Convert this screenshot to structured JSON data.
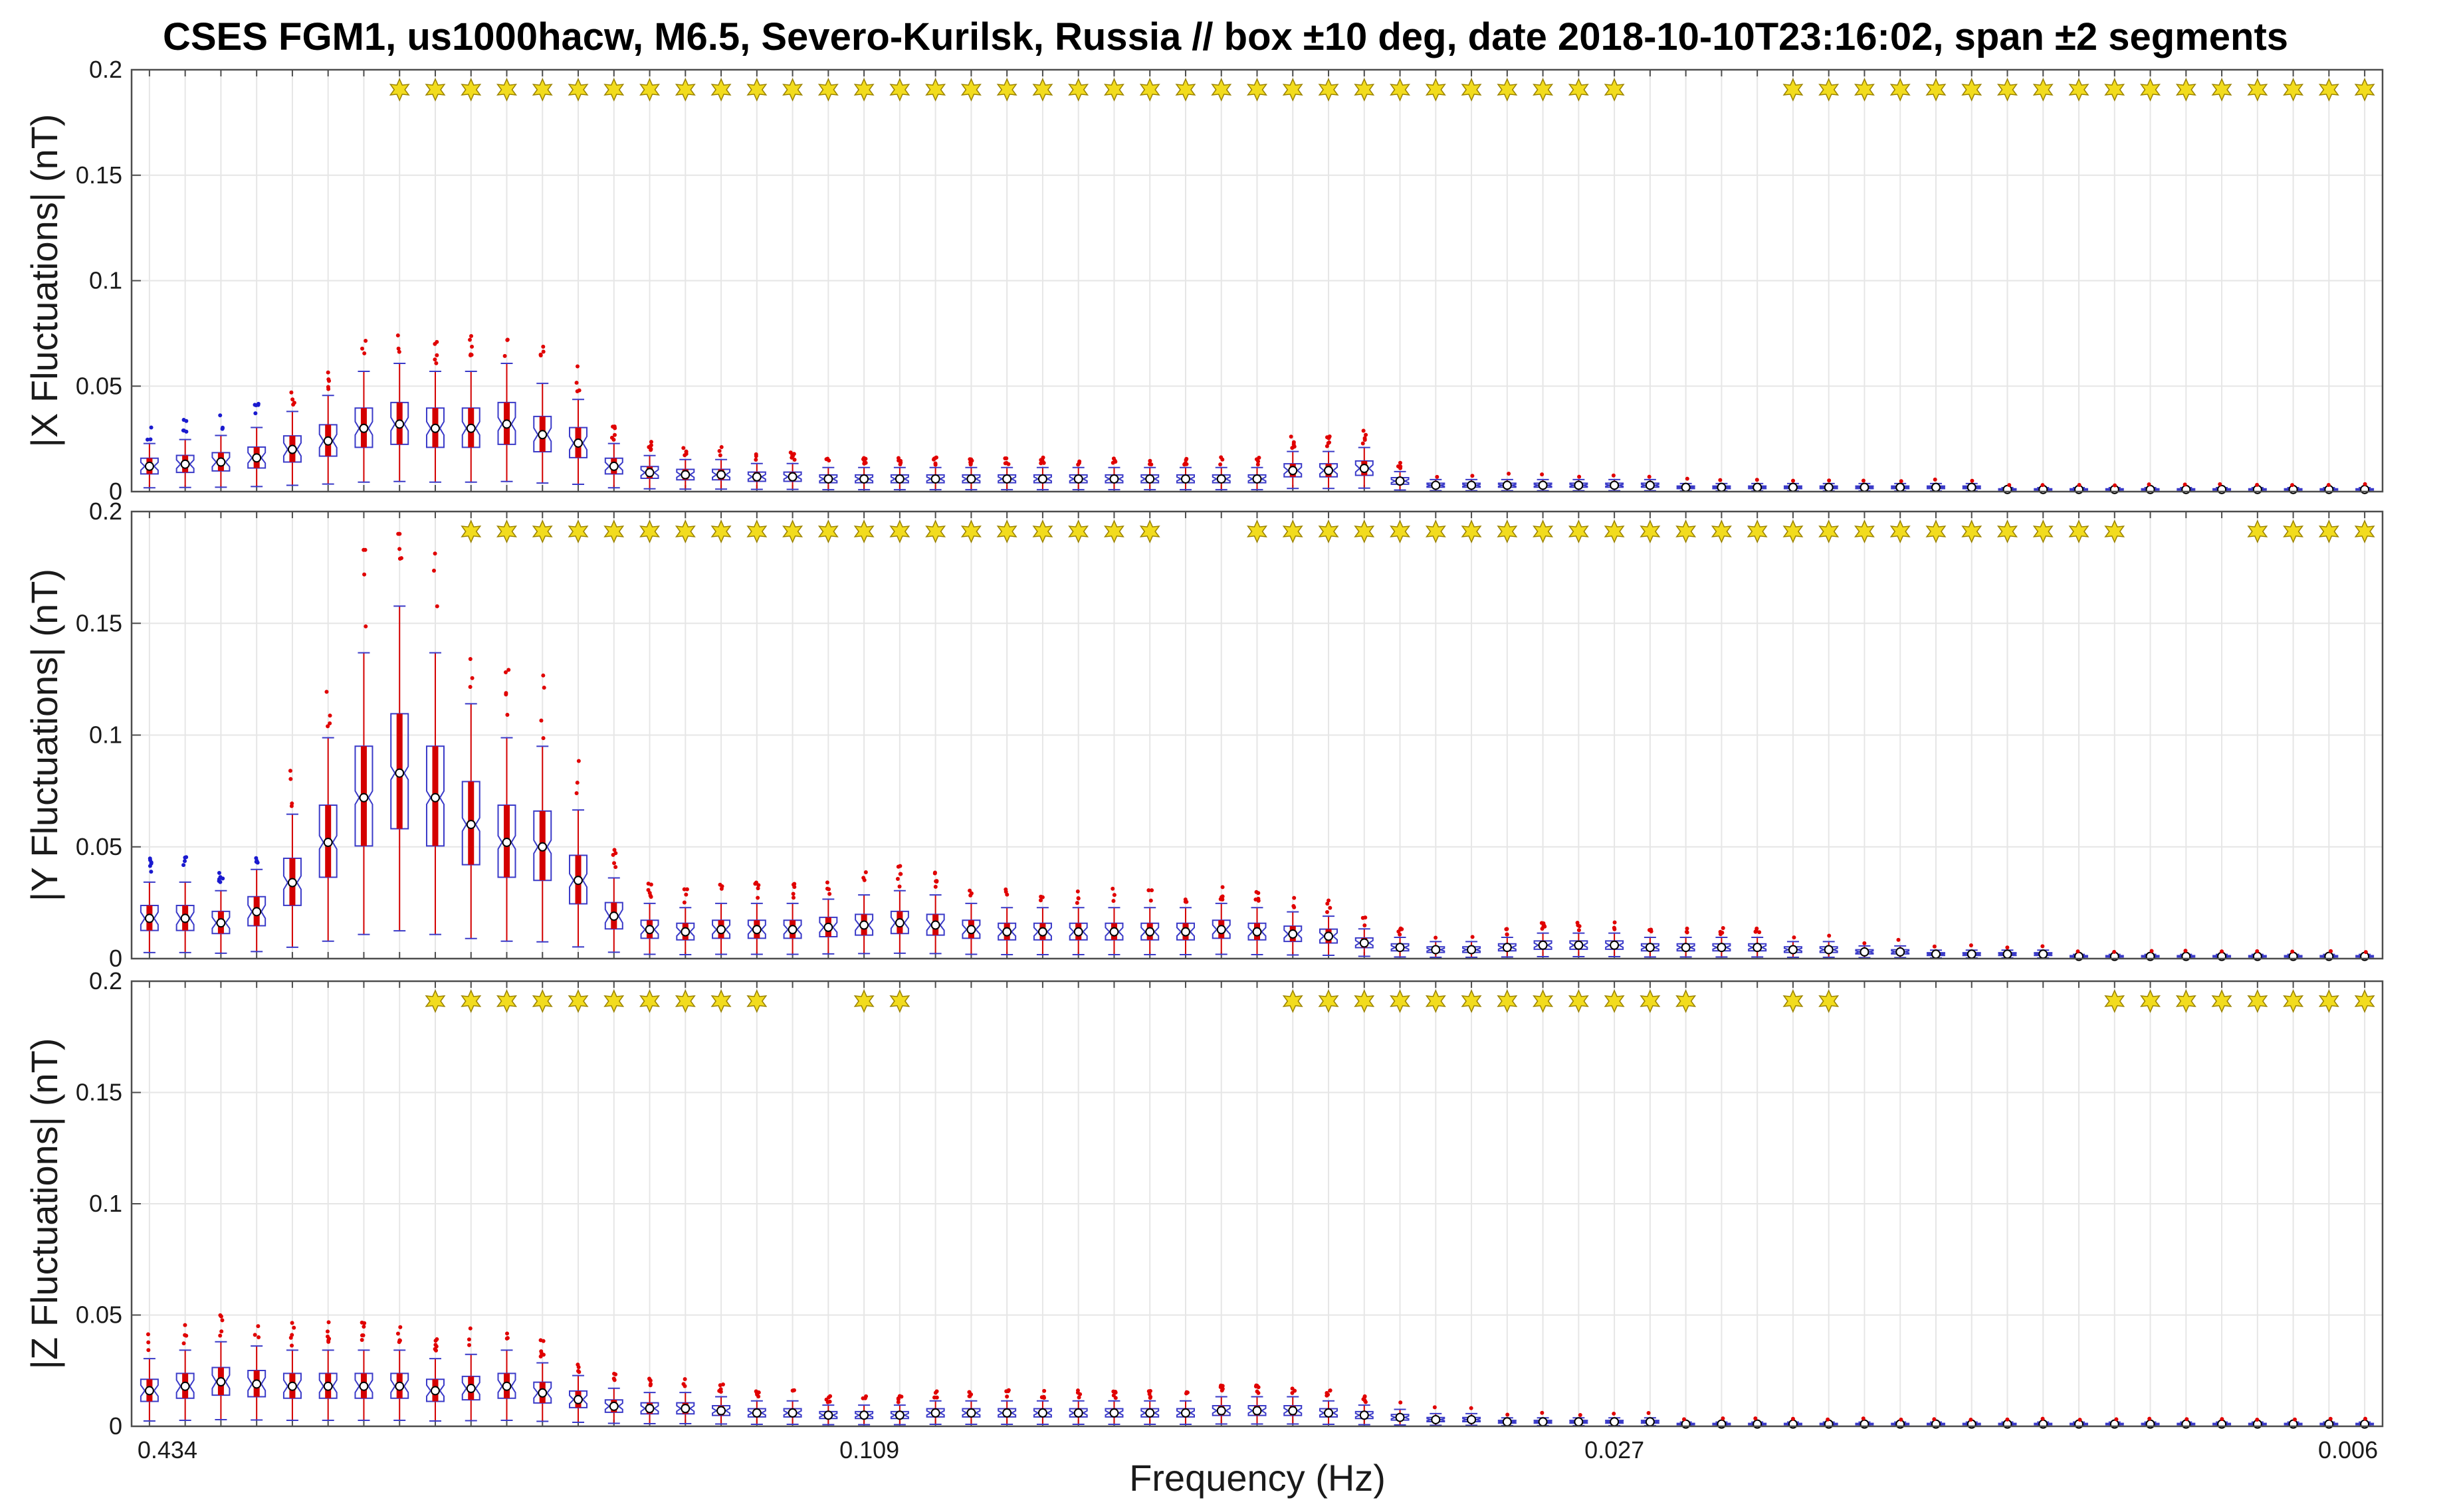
{
  "colors": {
    "box": "#3a3ac8",
    "median": "#d40000",
    "outlier_red": "#e00000",
    "outlier_blue": "#1a1acf",
    "star": "#f2dc1e",
    "grid": "#e6e6e6",
    "axis": "#4d4d4d"
  },
  "chart_data": {
    "type": "boxplot",
    "title": "CSES FGM1, us1000hacw, M6.5, Severo-Kurilsk, Russia // box ±10 deg, date 2018-10-10T23:16:02, span ±2 segments",
    "xlabel": "Frequency (Hz)",
    "xticks": [
      "0.434",
      "0.109",
      "0.027",
      "0.006"
    ],
    "n_bins": 63,
    "legend": "none",
    "grid": true,
    "panels": [
      {
        "ylabel": "|X Fluctuations| (nT)",
        "ylim": [
          0,
          0.2
        ],
        "yticks": [
          "0",
          "0.05",
          "0.1",
          "0.15",
          "0.2"
        ],
        "star_bins": [
          7,
          8,
          9,
          10,
          11,
          12,
          13,
          14,
          15,
          16,
          17,
          18,
          19,
          20,
          21,
          22,
          23,
          24,
          25,
          26,
          27,
          28,
          29,
          30,
          31,
          32,
          33,
          34,
          35,
          36,
          37,
          38,
          39,
          40,
          41,
          46,
          47,
          48,
          49,
          50,
          51,
          52,
          53,
          54,
          55,
          56,
          57,
          58,
          59,
          60,
          61,
          62
        ],
        "medians": [
          0.012,
          0.013,
          0.014,
          0.016,
          0.02,
          0.024,
          0.03,
          0.032,
          0.03,
          0.03,
          0.032,
          0.027,
          0.023,
          0.012,
          0.009,
          0.008,
          0.008,
          0.007,
          0.007,
          0.006,
          0.006,
          0.006,
          0.006,
          0.006,
          0.006,
          0.006,
          0.006,
          0.006,
          0.006,
          0.006,
          0.006,
          0.006,
          0.01,
          0.01,
          0.011,
          0.005,
          0.003,
          0.003,
          0.003,
          0.003,
          0.003,
          0.003,
          0.003,
          0.002,
          0.002,
          0.002,
          0.002,
          0.002,
          0.002,
          0.002,
          0.002,
          0.002,
          0.001,
          0.001,
          0.001,
          0.001,
          0.001,
          0.001,
          0.001,
          0.001,
          0.001,
          0.001,
          0.001
        ]
      },
      {
        "ylabel": "|Y Fluctuations| (nT)",
        "ylim": [
          0,
          0.2
        ],
        "yticks": [
          "0",
          "0.05",
          "0.1",
          "0.15",
          "0.2"
        ],
        "star_bins": [
          9,
          10,
          11,
          12,
          13,
          14,
          15,
          16,
          17,
          18,
          19,
          20,
          21,
          22,
          23,
          24,
          25,
          26,
          27,
          28,
          31,
          32,
          33,
          34,
          35,
          36,
          37,
          38,
          39,
          40,
          41,
          42,
          43,
          44,
          45,
          46,
          47,
          48,
          49,
          50,
          51,
          52,
          53,
          54,
          55,
          59,
          60,
          61,
          62
        ],
        "medians": [
          0.018,
          0.018,
          0.016,
          0.021,
          0.034,
          0.052,
          0.072,
          0.083,
          0.072,
          0.06,
          0.052,
          0.05,
          0.035,
          0.019,
          0.013,
          0.012,
          0.013,
          0.013,
          0.013,
          0.014,
          0.015,
          0.016,
          0.015,
          0.013,
          0.012,
          0.012,
          0.012,
          0.012,
          0.012,
          0.012,
          0.013,
          0.012,
          0.011,
          0.01,
          0.007,
          0.005,
          0.004,
          0.004,
          0.005,
          0.006,
          0.006,
          0.006,
          0.005,
          0.005,
          0.005,
          0.005,
          0.004,
          0.004,
          0.003,
          0.003,
          0.002,
          0.002,
          0.002,
          0.002,
          0.001,
          0.001,
          0.001,
          0.001,
          0.001,
          0.001,
          0.001,
          0.001,
          0.001
        ]
      },
      {
        "ylabel": "|Z Fluctuations| (nT)",
        "ylim": [
          0,
          0.2
        ],
        "yticks": [
          "0",
          "0.05",
          "0.1",
          "0.15",
          "0.2"
        ],
        "star_bins": [
          8,
          9,
          10,
          11,
          12,
          13,
          14,
          15,
          16,
          17,
          20,
          21,
          32,
          33,
          34,
          35,
          36,
          37,
          38,
          39,
          40,
          41,
          42,
          43,
          46,
          47,
          55,
          56,
          57,
          58,
          59,
          60,
          61,
          62
        ],
        "medians": [
          0.016,
          0.018,
          0.02,
          0.019,
          0.018,
          0.018,
          0.018,
          0.018,
          0.016,
          0.017,
          0.018,
          0.015,
          0.012,
          0.009,
          0.008,
          0.008,
          0.007,
          0.006,
          0.006,
          0.005,
          0.005,
          0.005,
          0.006,
          0.006,
          0.006,
          0.006,
          0.006,
          0.006,
          0.006,
          0.006,
          0.007,
          0.007,
          0.007,
          0.006,
          0.005,
          0.004,
          0.003,
          0.003,
          0.002,
          0.002,
          0.002,
          0.002,
          0.002,
          0.001,
          0.001,
          0.001,
          0.001,
          0.001,
          0.001,
          0.001,
          0.001,
          0.001,
          0.001,
          0.001,
          0.001,
          0.001,
          0.001,
          0.001,
          0.001,
          0.001,
          0.001,
          0.001,
          0.001
        ]
      }
    ]
  }
}
